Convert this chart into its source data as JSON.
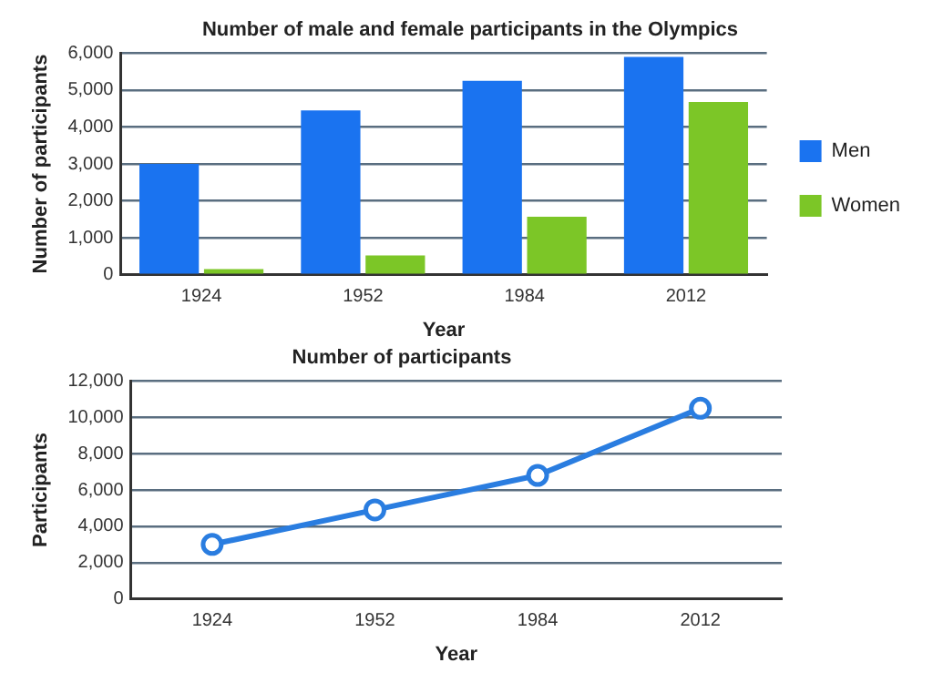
{
  "chart_data": [
    {
      "type": "bar",
      "title": "Number of male and female participants in the Olympics",
      "xlabel": "Year",
      "ylabel": "Number of participants",
      "categories": [
        "1924",
        "1952",
        "1984",
        "2012"
      ],
      "series": [
        {
          "name": "Men",
          "color": "#1a73f0",
          "values": [
            3000,
            4450,
            5250,
            5900
          ]
        },
        {
          "name": "Women",
          "color": "#7cc627",
          "values": [
            150,
            520,
            1570,
            4680
          ]
        }
      ],
      "ylim": [
        0,
        6000
      ],
      "yticks": [
        0,
        {
          "value": 1000,
          "label": "1,000"
        },
        {
          "value": 2000,
          "label": "2,000"
        },
        {
          "value": 3000,
          "label": "3,000"
        },
        {
          "value": 4000,
          "label": "4,000"
        },
        {
          "value": 5000,
          "label": "5,000"
        },
        {
          "value": 6000,
          "label": "6,000"
        }
      ],
      "grid": "y",
      "legend": "right"
    },
    {
      "type": "line",
      "title": "Number of participants",
      "xlabel": "Year",
      "ylabel": "Participants",
      "categories": [
        "1924",
        "1952",
        "1984",
        "2012"
      ],
      "series": [
        {
          "color": "#2a7de0",
          "values": [
            3000,
            4900,
            6800,
            10500
          ]
        }
      ],
      "ylim": [
        0,
        12000
      ],
      "yticks": [
        0,
        {
          "value": 2000,
          "label": "2,000"
        },
        {
          "value": 4000,
          "label": "4,000"
        },
        {
          "value": 6000,
          "label": "6,000"
        },
        {
          "value": 8000,
          "label": "8,000"
        },
        {
          "value": 10000,
          "label": "10,000"
        },
        {
          "value": 12000,
          "label": "12,000"
        }
      ],
      "grid": "y",
      "marker": "circle",
      "line_style": "solid"
    }
  ]
}
